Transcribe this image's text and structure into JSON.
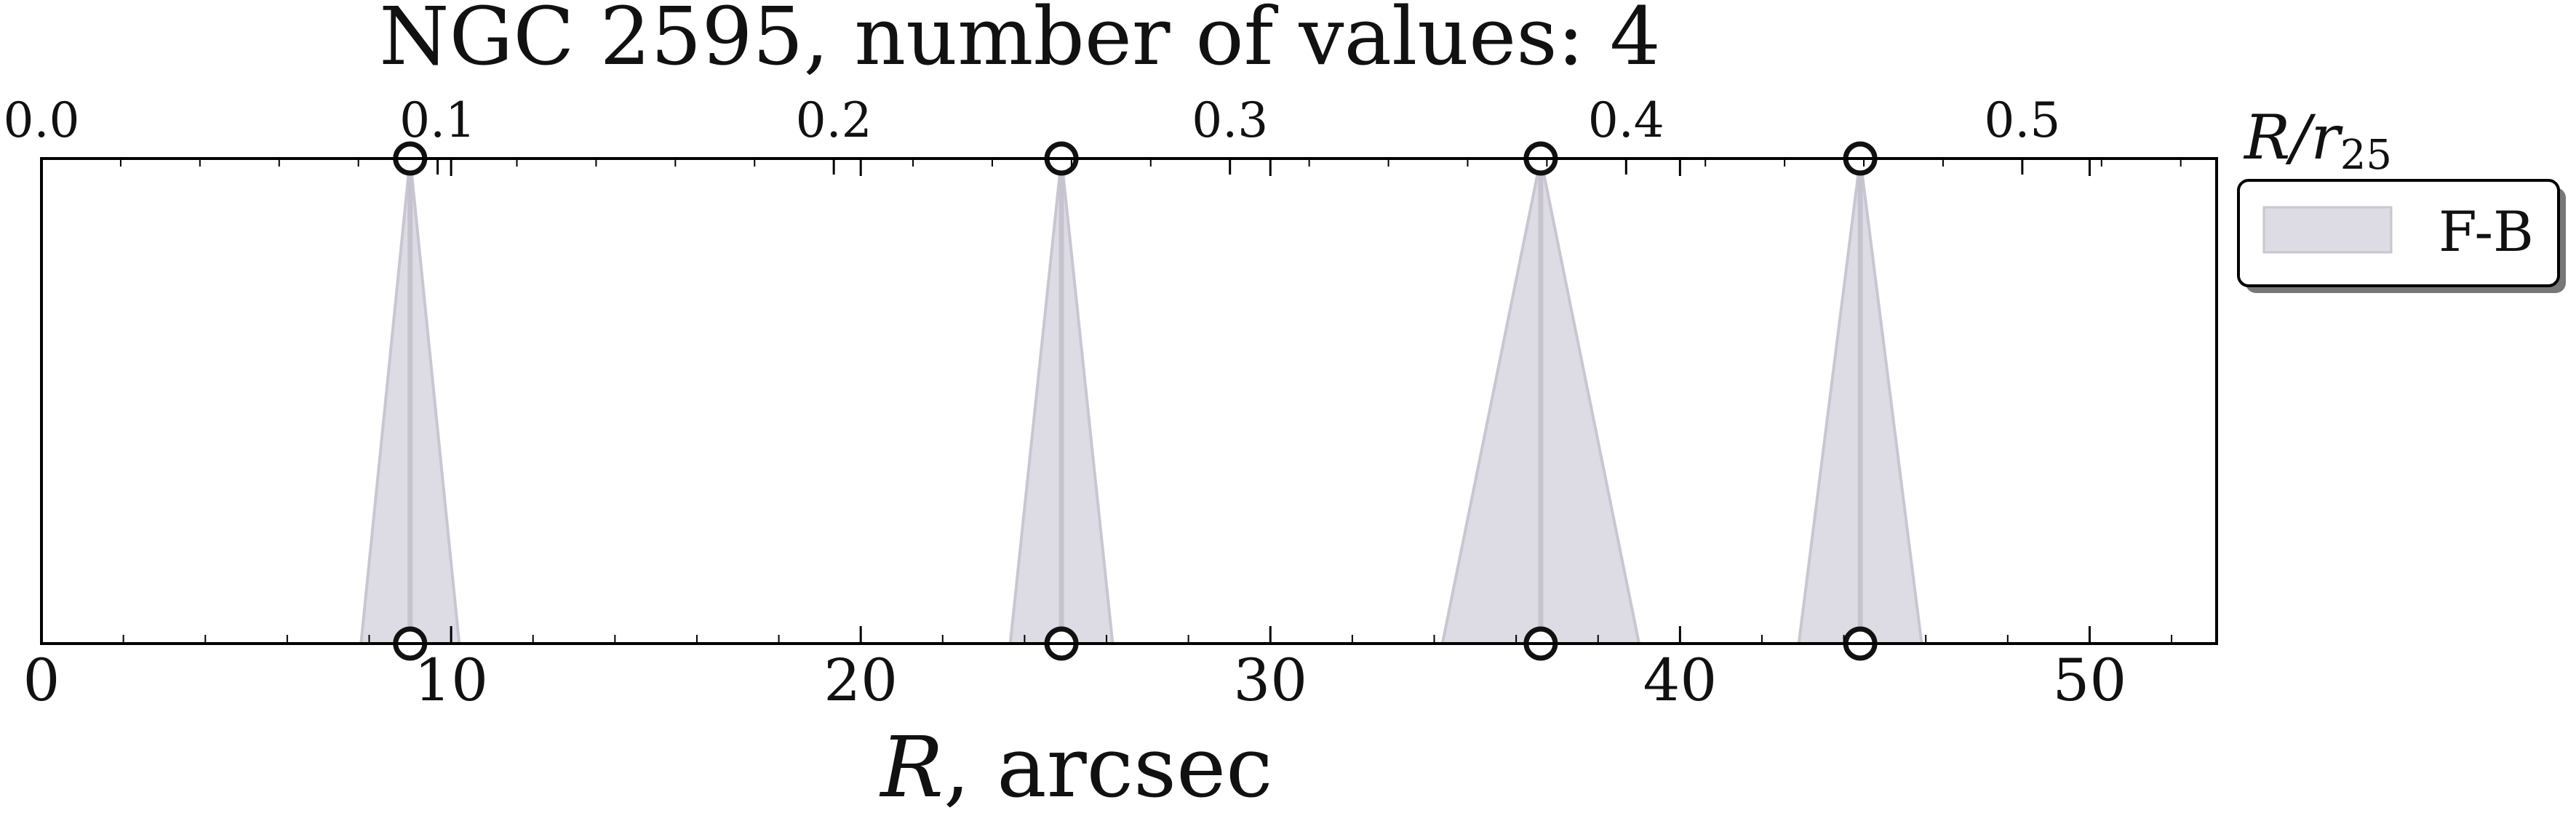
{
  "chart_data": {
    "type": "scatter",
    "title": "NGC 2595, number of values: 4",
    "xlabel_symbol": "R",
    "xlabel_rest": ", arcsec",
    "x2label_base": "R/r",
    "x2label_sub": "25",
    "xlim": [
      0,
      53.1
    ],
    "xticks": [
      0,
      10,
      20,
      30,
      40,
      50
    ],
    "x2ticks": [
      "0.0",
      "0.1",
      "0.2",
      "0.3",
      "0.4",
      "0.5"
    ],
    "x2_per_x": 0.01034,
    "grid": false,
    "legend": {
      "location": "right",
      "entries": [
        "F-B"
      ]
    },
    "series": [
      {
        "name": "F-B",
        "x": [
          9.0,
          24.9,
          36.6,
          44.4
        ],
        "x_err": [
          1.2,
          1.25,
          2.4,
          1.5
        ],
        "color": "#dddbe3",
        "edge_color": "#c9c6d2"
      }
    ]
  }
}
